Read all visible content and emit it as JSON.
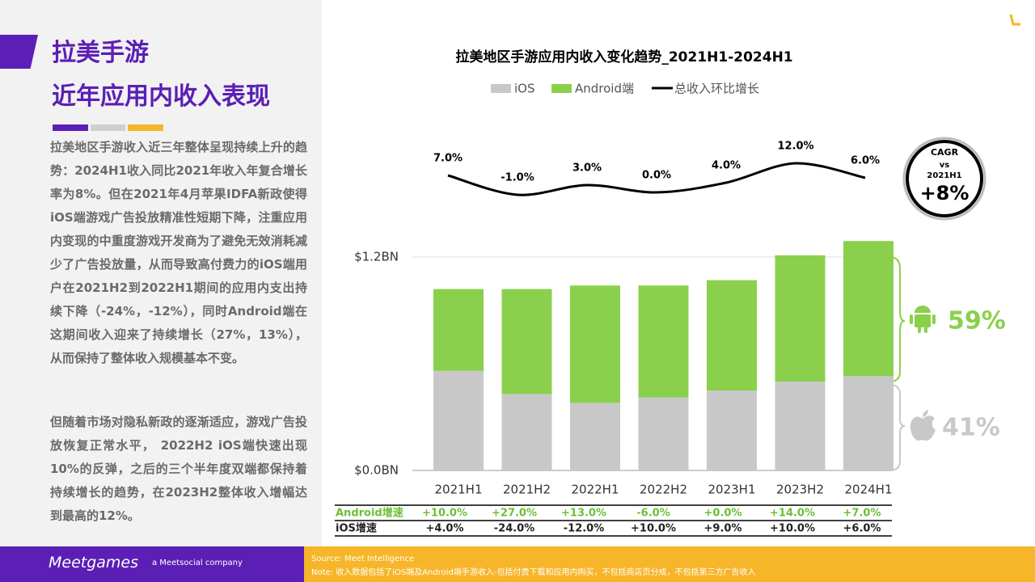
{
  "header": {
    "title_line1": "拉美手游",
    "title_line2": "近年应用内收入表现"
  },
  "paragraphs": [
    "拉美地区手游收入近三年整体呈现持续上升的趋势：2024H1收入同比2021年收入年复合增长率为8%。但在2021年4月苹果IDFA新政使得iOS端游戏广告投放精准性短期下降，注重应用内变现的中重度游戏开发商为了避免无效消耗减少了广告投放量，从而导致高付费力的iOS端用户在2021H2到2022H1期间的应用内支出持续下降（-24%，-12%），同时Android端在这期间收入迎来了持续增长（27%，13%），从而保持了整体收入规模基本不变。",
    "但随着市场对隐私新政的逐渐适应，游戏广告投放恢复正常水平， 2022H2 iOS端快速出现10%的反弹，之后的三个半年度双端都保持着持续增长的趋势，在2023H2整体收入增幅达到最高的12%。"
  ],
  "chart_data": {
    "type": "bar",
    "stacked": true,
    "title": "拉美地区手游应用内收入变化趋势_2021H1-2024H1",
    "categories": [
      "2021H1",
      "2021H2",
      "2022H1",
      "2022H2",
      "2023H1",
      "2023H2",
      "2024H1"
    ],
    "series": [
      {
        "name": "iOS",
        "color": "#c8c8c8",
        "values": [
          0.56,
          0.43,
          0.38,
          0.41,
          0.45,
          0.5,
          0.53
        ]
      },
      {
        "name": "Android端",
        "color": "#8ad04c",
        "values": [
          0.46,
          0.59,
          0.66,
          0.63,
          0.62,
          0.71,
          0.76
        ]
      },
      {
        "name": "总收入环比增长",
        "color": "#000000",
        "type": "line",
        "axis": "y2",
        "values": [
          7,
          -1,
          3,
          0,
          4,
          12,
          6
        ],
        "value_labels": [
          "7.0%",
          "-1.0%",
          "3.0%",
          "0.0%",
          "4.0%",
          "12.0%",
          "6.0%"
        ]
      }
    ],
    "ylim": [
      0,
      1.2
    ],
    "yticks": [
      {
        "value": 0,
        "label": "$0.0BN"
      },
      {
        "value": 1.2,
        "label": "$1.2BN"
      }
    ],
    "y2lim": [
      -8,
      16
    ],
    "grid": true
  },
  "growth_table": {
    "rows": [
      {
        "label": "Android增速",
        "values": [
          "+10.0%",
          "+27.0%",
          "+13.0%",
          "-6.0%",
          "+0.0%",
          "+14.0%",
          "+7.0%"
        ]
      },
      {
        "label": "iOS增速",
        "values": [
          "+4.0%",
          "-24.0%",
          "-12.0%",
          "+10.0%",
          "+9.0%",
          "+10.0%",
          "+6.0%"
        ]
      }
    ]
  },
  "share": {
    "android": "59%",
    "ios": "41%"
  },
  "cagr": {
    "line1": "CAGR",
    "line2": "vs",
    "line3": "2021H1",
    "value": "+8%"
  },
  "footer": {
    "logo": "Meetgames",
    "tagline": "a Meetsocial company",
    "source": "Source: Meet Intelligence",
    "note": "Note: 收入数据包括了iOS端及Android端手游收入-包括付费下载和应用内购买，不包括商店页分成，不包括第三方广告收入"
  }
}
